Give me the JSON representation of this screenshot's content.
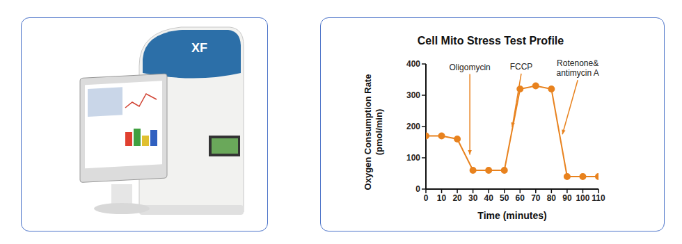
{
  "left_panel": {
    "label": "XF"
  },
  "chart_data": {
    "type": "line",
    "title": "Cell Mito Stress Test Profile",
    "x_label": "Time (minutes)",
    "y_label": "Oxygen Consumption Rate\n(pmol/min)",
    "x": [
      0,
      10,
      20,
      30,
      40,
      50,
      60,
      70,
      80,
      90,
      100,
      110
    ],
    "values": [
      170,
      170,
      160,
      60,
      60,
      60,
      320,
      330,
      320,
      40,
      40,
      40
    ],
    "color": "#e8821e",
    "marker": "circle",
    "xlim": [
      0,
      110
    ],
    "xticks": [
      0,
      10,
      20,
      30,
      40,
      50,
      60,
      70,
      80,
      90,
      100,
      110
    ],
    "ylim": [
      0,
      400
    ],
    "yticks": [
      0,
      100,
      200,
      300,
      400
    ],
    "grid": false,
    "annotations": [
      {
        "text": "Oligomycin",
        "x": 28,
        "y": 110
      },
      {
        "text": "FCCP",
        "x": 55,
        "y": 198
      },
      {
        "text": "Rotenone&\nantimycin A",
        "x": 87,
        "y": 175
      }
    ]
  }
}
